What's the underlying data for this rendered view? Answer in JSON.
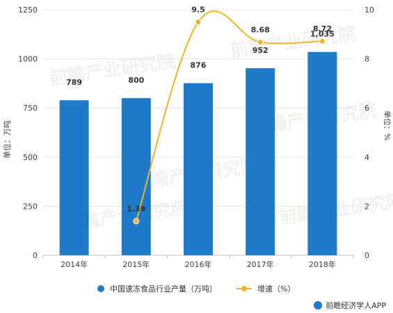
{
  "chart_data": {
    "type": "bar",
    "categories": [
      "2014年",
      "2015年",
      "2016年",
      "2017年",
      "2018年"
    ],
    "series": [
      {
        "name": "中国速冻食品行业产量（万吨）",
        "type": "bar",
        "axis": "left",
        "color": "#1f7bc8",
        "values": [
          789,
          800,
          876,
          952,
          1035
        ],
        "labels": [
          "789",
          "800",
          "876",
          "952",
          "1,035"
        ]
      },
      {
        "name": "增速（%）",
        "type": "line",
        "axis": "right",
        "color": "#f0b429",
        "values": [
          null,
          1.39,
          9.5,
          8.68,
          8.72
        ],
        "labels": [
          "",
          "1.39",
          "9.5",
          "8.68",
          "8.72"
        ]
      }
    ],
    "ylabel": "单位：万吨",
    "ylabel_right": "单位：%",
    "ylim": [
      0,
      1250
    ],
    "yticks": [
      "0",
      "250",
      "500",
      "750",
      "1000",
      "1250"
    ],
    "ylim_right": [
      0,
      10
    ],
    "yticks_right": [
      "0",
      "2",
      "4",
      "6",
      "8",
      "10"
    ],
    "grid": true,
    "legend_position": "bottom"
  },
  "source": "前瞻经济学人APP",
  "watermark": "前瞻产业研究院"
}
